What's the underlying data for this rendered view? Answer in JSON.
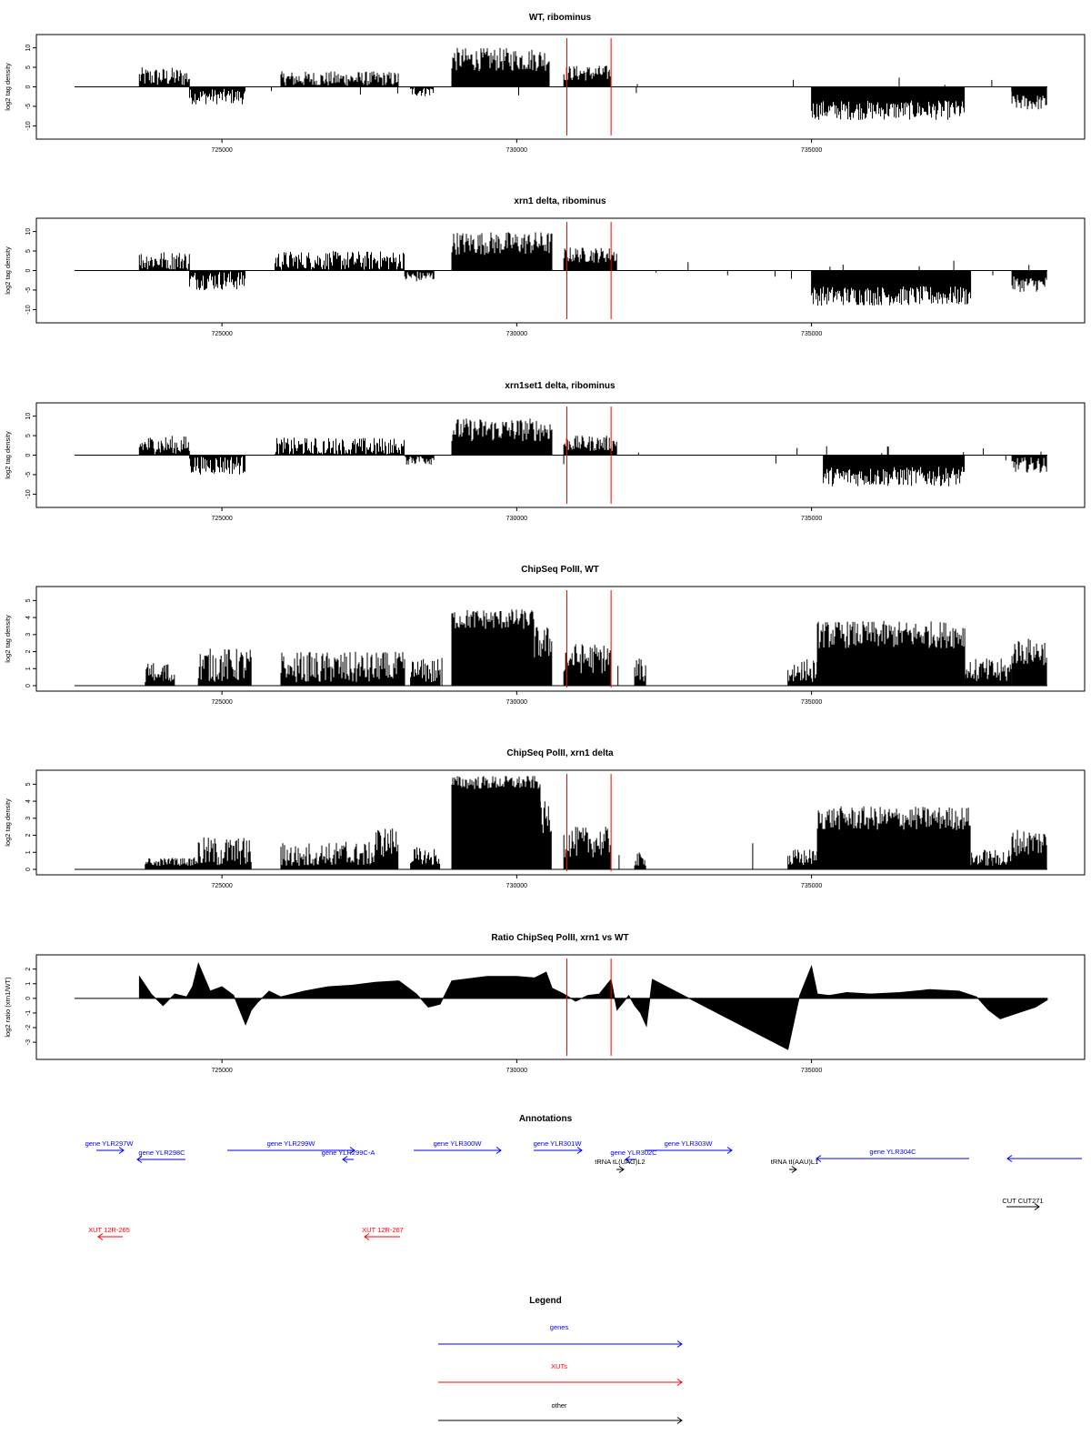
{
  "panels": [
    {
      "title": "WT, ribominus",
      "ylabel": "log2 tag density",
      "ytick_labels": [
        "10",
        "5",
        "0",
        "-5",
        "-10"
      ]
    },
    {
      "title": "xrn1 delta, ribominus",
      "ylabel": "log2 tag density",
      "ytick_labels": [
        "10",
        "5",
        "0",
        "-5",
        "-10"
      ]
    },
    {
      "title": "xrn1set1 delta, ribominus",
      "ylabel": "log2 tag density",
      "ytick_labels": [
        "10",
        "5",
        "0",
        "-5",
        "-10"
      ]
    },
    {
      "title": "ChipSeq PolII, WT",
      "ylabel": "log2 tag density",
      "ytick_labels": [
        "5",
        "4",
        "3",
        "2",
        "1",
        "0"
      ]
    },
    {
      "title": "ChipSeq PolII, xrn1 delta",
      "ylabel": "log2 tag density",
      "ytick_labels": [
        "5",
        "4",
        "3",
        "2",
        "1",
        "0"
      ]
    },
    {
      "title": "Ratio ChipSeq PolII, xrn1 vs WT",
      "ylabel": "log2 ratio (xrn1/WT)",
      "ytick_labels": [
        "2",
        "1",
        "0",
        "-1",
        "-2",
        "-3"
      ]
    }
  ],
  "annotations_title": "Annotations",
  "annotations": [
    {
      "label": "gene YLR297W",
      "kind": "gene"
    },
    {
      "label": "gene YLR298C",
      "kind": "gene"
    },
    {
      "label": "gene YLR299W",
      "kind": "gene"
    },
    {
      "label": "gene YLR299C-A",
      "kind": "gene"
    },
    {
      "label": "gene YLR300W",
      "kind": "gene"
    },
    {
      "label": "gene YLR301W",
      "kind": "gene"
    },
    {
      "label": "gene YLR302C",
      "kind": "gene"
    },
    {
      "label": "gene YLR303W",
      "kind": "gene"
    },
    {
      "label": "gene YLR304C",
      "kind": "gene"
    },
    {
      "label": "",
      "kind": "gene"
    },
    {
      "label": "tRNA tL(UAG)L2",
      "kind": "other"
    },
    {
      "label": "tRNA tI(AAU)L1",
      "kind": "other"
    },
    {
      "label": "CUT CUT271",
      "kind": "other"
    },
    {
      "label": "XUT 12R-265",
      "kind": "xut"
    },
    {
      "label": "XUT 12R-267",
      "kind": "xut"
    }
  ],
  "legend_title": "Legend",
  "legend": [
    {
      "label": "genes",
      "color": "#0000ff"
    },
    {
      "label": "XUTs",
      "color": "#ff0000"
    },
    {
      "label": "other",
      "color": "#000000"
    }
  ],
  "colors": {
    "marker": "#ff0000",
    "gene": "#0000ff",
    "xut": "#ff0000",
    "other": "#000000",
    "bars": "#000000"
  },
  "chart_data": [
    {
      "type": "bar",
      "title": "WT, ribominus",
      "ylabel": "log2 tag density",
      "xlim": [
        722500,
        739000
      ],
      "ylim": [
        -12,
        12
      ],
      "xticks": [
        725000,
        730000,
        735000
      ],
      "xtick_labels": [
        "725000",
        "730000",
        "735000"
      ],
      "yticks": [
        10,
        5,
        0,
        -5,
        -10
      ],
      "markers_x": [
        730850,
        731600
      ],
      "segments": [
        {
          "x0": 723600,
          "x1": 724450,
          "mean": 2.5,
          "spread": 2.5
        },
        {
          "x0": 724450,
          "x1": 725400,
          "mean": -2.5,
          "spread": 2.0
        },
        {
          "x0": 726000,
          "x1": 728000,
          "mean": 2.0,
          "spread": 2.0
        },
        {
          "x0": 728200,
          "x1": 728600,
          "mean": -1.0,
          "spread": 1.5
        },
        {
          "x0": 728900,
          "x1": 730550,
          "mean": 7.0,
          "spread": 3.0
        },
        {
          "x0": 730800,
          "x1": 731600,
          "mean": 3.5,
          "spread": 2.0
        },
        {
          "x0": 735000,
          "x1": 737600,
          "mean": -6.0,
          "spread": 2.5
        },
        {
          "x0": 738400,
          "x1": 739000,
          "mean": -4.0,
          "spread": 2.0
        }
      ]
    },
    {
      "type": "bar",
      "title": "xrn1 delta, ribominus",
      "ylabel": "log2 tag density",
      "xlim": [
        722500,
        739000
      ],
      "ylim": [
        -12,
        12
      ],
      "xticks": [
        725000,
        730000,
        735000
      ],
      "xtick_labels": [
        "725000",
        "730000",
        "735000"
      ],
      "yticks": [
        10,
        5,
        0,
        -5,
        -10
      ],
      "markers_x": [
        730850,
        731600
      ],
      "segments": [
        {
          "x0": 723600,
          "x1": 724450,
          "mean": 2.5,
          "spread": 2.5
        },
        {
          "x0": 724450,
          "x1": 725400,
          "mean": -2.5,
          "spread": 2.5
        },
        {
          "x0": 725900,
          "x1": 728100,
          "mean": 2.5,
          "spread": 2.5
        },
        {
          "x0": 728100,
          "x1": 728600,
          "mean": -1.5,
          "spread": 1.5
        },
        {
          "x0": 728900,
          "x1": 730600,
          "mean": 7.0,
          "spread": 3.0
        },
        {
          "x0": 730800,
          "x1": 731700,
          "mean": 4.0,
          "spread": 2.0
        },
        {
          "x0": 735000,
          "x1": 737700,
          "mean": -6.5,
          "spread": 2.5
        },
        {
          "x0": 738400,
          "x1": 739000,
          "mean": -3.5,
          "spread": 2.0
        }
      ]
    },
    {
      "type": "bar",
      "title": "xrn1set1 delta, ribominus",
      "ylabel": "log2 tag density",
      "xlim": [
        722500,
        739000
      ],
      "ylim": [
        -12,
        12
      ],
      "xticks": [
        725000,
        730000,
        735000
      ],
      "xtick_labels": [
        "725000",
        "730000",
        "735000"
      ],
      "yticks": [
        10,
        5,
        0,
        -5,
        -10
      ],
      "markers_x": [
        730850,
        731600
      ],
      "segments": [
        {
          "x0": 723600,
          "x1": 724450,
          "mean": 2.5,
          "spread": 2.5
        },
        {
          "x0": 724450,
          "x1": 725400,
          "mean": -2.5,
          "spread": 2.5
        },
        {
          "x0": 725900,
          "x1": 728100,
          "mean": 2.0,
          "spread": 2.5
        },
        {
          "x0": 728100,
          "x1": 728600,
          "mean": -1.0,
          "spread": 1.5
        },
        {
          "x0": 728900,
          "x1": 730600,
          "mean": 6.5,
          "spread": 3.0
        },
        {
          "x0": 730800,
          "x1": 731700,
          "mean": 3.0,
          "spread": 2.0
        },
        {
          "x0": 735200,
          "x1": 737600,
          "mean": -5.5,
          "spread": 2.5
        },
        {
          "x0": 738400,
          "x1": 739000,
          "mean": -2.5,
          "spread": 2.0
        }
      ]
    },
    {
      "type": "bar",
      "title": "ChipSeq PolII, WT",
      "ylabel": "log2 tag density",
      "xlim": [
        722500,
        739000
      ],
      "ylim": [
        0,
        5.5
      ],
      "xticks": [
        725000,
        730000,
        735000
      ],
      "xtick_labels": [
        "725000",
        "730000",
        "735000"
      ],
      "yticks": [
        5,
        4,
        3,
        2,
        1,
        0
      ],
      "markers_x": [
        730850,
        731600
      ],
      "segments": [
        {
          "x0": 723700,
          "x1": 724200,
          "mean": 0.6,
          "spread": 0.8
        },
        {
          "x0": 724600,
          "x1": 725500,
          "mean": 1.2,
          "spread": 1.0
        },
        {
          "x0": 726000,
          "x1": 728100,
          "mean": 1.0,
          "spread": 1.0
        },
        {
          "x0": 728200,
          "x1": 728700,
          "mean": 0.8,
          "spread": 0.8
        },
        {
          "x0": 728900,
          "x1": 730300,
          "mean": 3.9,
          "spread": 0.6
        },
        {
          "x0": 730300,
          "x1": 730600,
          "mean": 2.5,
          "spread": 1.0
        },
        {
          "x0": 730800,
          "x1": 731600,
          "mean": 1.6,
          "spread": 0.9
        },
        {
          "x0": 732000,
          "x1": 732200,
          "mean": 0.8,
          "spread": 0.8
        },
        {
          "x0": 734600,
          "x1": 735100,
          "mean": 0.8,
          "spread": 0.8
        },
        {
          "x0": 735100,
          "x1": 737600,
          "mean": 3.0,
          "spread": 0.8
        },
        {
          "x0": 737600,
          "x1": 738400,
          "mean": 0.8,
          "spread": 0.8
        },
        {
          "x0": 738400,
          "x1": 739000,
          "mean": 2.0,
          "spread": 0.8
        }
      ]
    },
    {
      "type": "bar",
      "title": "ChipSeq PolII, xrn1 delta",
      "ylabel": "log2 tag density",
      "xlim": [
        722500,
        739000
      ],
      "ylim": [
        0,
        5.5
      ],
      "xticks": [
        725000,
        730000,
        735000
      ],
      "xtick_labels": [
        "725000",
        "730000",
        "735000"
      ],
      "yticks": [
        5,
        4,
        3,
        2,
        1,
        0
      ],
      "markers_x": [
        730850,
        731600
      ],
      "segments": [
        {
          "x0": 723700,
          "x1": 724600,
          "mean": 0.3,
          "spread": 0.4
        },
        {
          "x0": 724600,
          "x1": 725500,
          "mean": 1.0,
          "spread": 0.9
        },
        {
          "x0": 726000,
          "x1": 727600,
          "mean": 0.8,
          "spread": 0.8
        },
        {
          "x0": 727600,
          "x1": 728000,
          "mean": 1.6,
          "spread": 0.9
        },
        {
          "x0": 728200,
          "x1": 728700,
          "mean": 0.6,
          "spread": 0.7
        },
        {
          "x0": 728900,
          "x1": 730400,
          "mean": 5.1,
          "spread": 0.4
        },
        {
          "x0": 730400,
          "x1": 730600,
          "mean": 3.0,
          "spread": 1.0
        },
        {
          "x0": 730800,
          "x1": 731600,
          "mean": 1.6,
          "spread": 0.9
        },
        {
          "x0": 732000,
          "x1": 732200,
          "mean": 0.5,
          "spread": 0.5
        },
        {
          "x0": 734600,
          "x1": 735100,
          "mean": 0.6,
          "spread": 0.6
        },
        {
          "x0": 735100,
          "x1": 737700,
          "mean": 3.0,
          "spread": 0.7
        },
        {
          "x0": 737700,
          "x1": 738400,
          "mean": 0.6,
          "spread": 0.6
        },
        {
          "x0": 738400,
          "x1": 739000,
          "mean": 1.6,
          "spread": 0.8
        }
      ]
    },
    {
      "type": "area",
      "title": "Ratio ChipSeq PolII, xrn1 vs WT",
      "ylabel": "log2 ratio (xrn1/WT)",
      "xlim": [
        722500,
        739000
      ],
      "ylim": [
        -3.8,
        2.6
      ],
      "xticks": [
        725000,
        730000,
        735000
      ],
      "xtick_labels": [
        "725000",
        "730000",
        "735000"
      ],
      "yticks": [
        2,
        1,
        0,
        -1,
        -2,
        -3
      ],
      "markers_x": [
        730850,
        731600
      ],
      "x": [
        723600,
        723800,
        724000,
        724200,
        724400,
        724500,
        724600,
        724800,
        725000,
        725200,
        725400,
        725500,
        725600,
        725800,
        726000,
        726400,
        726800,
        727200,
        727600,
        728000,
        728300,
        728500,
        728700,
        728900,
        729100,
        729500,
        730000,
        730300,
        730500,
        730600,
        730800,
        731000,
        731200,
        731400,
        731500,
        731600,
        731700,
        731800,
        731900,
        732000,
        732100,
        732200,
        732300,
        734600,
        734800,
        735000,
        735100,
        735300,
        735600,
        736000,
        736500,
        737000,
        737500,
        737800,
        738000,
        738200,
        738500,
        738800,
        739000
      ],
      "y": [
        1.5,
        0.3,
        -0.5,
        0.3,
        0.1,
        0.8,
        2.4,
        0.5,
        0.8,
        0.2,
        -1.8,
        -0.8,
        -0.3,
        0.5,
        0.1,
        0.5,
        0.8,
        0.9,
        1.1,
        1.2,
        0.3,
        -0.6,
        -0.4,
        1.2,
        1.3,
        1.5,
        1.5,
        1.4,
        1.8,
        0.7,
        0.3,
        -0.2,
        0.2,
        0.3,
        0.8,
        1.3,
        -0.8,
        -0.3,
        0.2,
        -0.5,
        -1.0,
        -1.9,
        1.3,
        -3.5,
        0.2,
        2.2,
        0.3,
        0.2,
        0.4,
        0.3,
        0.4,
        0.6,
        0.5,
        0.1,
        -0.8,
        -1.4,
        -1.0,
        -0.6,
        -0.1
      ]
    }
  ]
}
